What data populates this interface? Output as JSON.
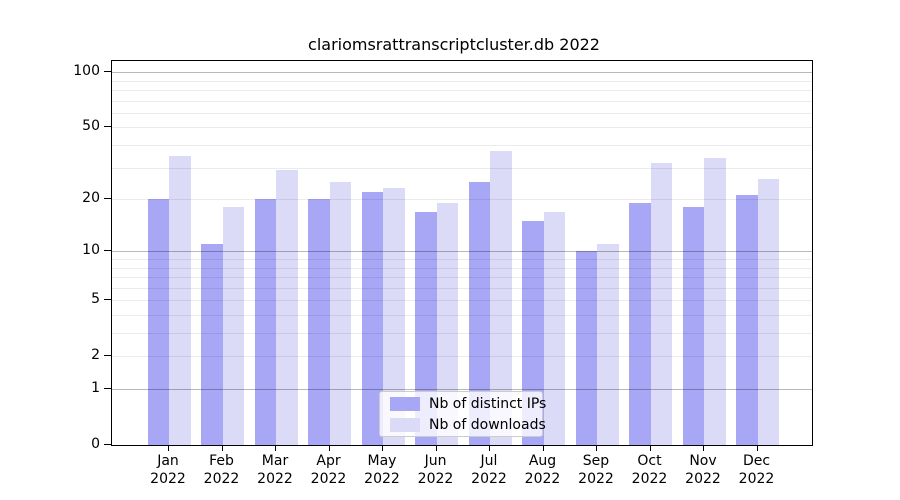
{
  "title": "clariomsrattranscriptcluster.db 2022",
  "chart_data": {
    "type": "bar",
    "categories": [
      "Jan",
      "Feb",
      "Mar",
      "Apr",
      "May",
      "Jun",
      "Jul",
      "Aug",
      "Sep",
      "Oct",
      "Nov",
      "Dec"
    ],
    "category_year": "2022",
    "series": [
      {
        "name": "Nb of distinct IPs",
        "color": "#a7a7f5",
        "values": [
          20,
          11,
          20,
          20,
          22,
          17,
          25,
          15,
          10,
          19,
          18,
          21
        ]
      },
      {
        "name": "Nb of downloads",
        "color": "#dbdbf8",
        "values": [
          35,
          18,
          29,
          25,
          23,
          19,
          37,
          17,
          11,
          32,
          34,
          26
        ]
      }
    ],
    "yscale": "log1p",
    "ylim": [
      0,
      115
    ],
    "yticks": [
      0,
      1,
      2,
      5,
      10,
      20,
      50,
      100
    ],
    "major_gridlines": [
      1,
      10,
      100
    ],
    "minor_gridlines": [
      2,
      3,
      4,
      5,
      6,
      7,
      8,
      9,
      20,
      30,
      40,
      50,
      60,
      70,
      80,
      90
    ],
    "grid": true,
    "legend_position": "bottom-center",
    "xlabel": "",
    "ylabel": ""
  }
}
